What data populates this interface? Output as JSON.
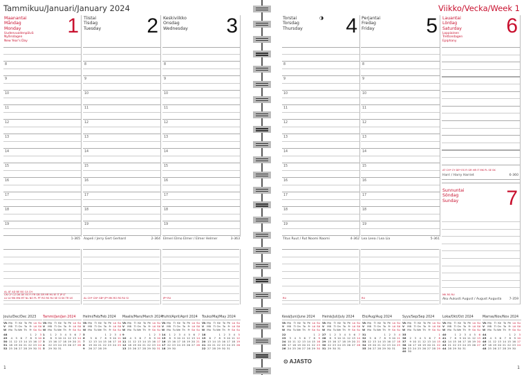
{
  "header": {
    "month_title": "Tammikuu/Januari/January 2024",
    "week_title": "Viikko/Vecka/Week 1"
  },
  "hours": [
    "8",
    "9",
    "10",
    "11",
    "12",
    "13",
    "14",
    "15",
    "16",
    "17",
    "18",
    "19"
  ],
  "days": [
    {
      "fi": "Maanantai",
      "sv": "Måndag",
      "en": "Monday",
      "num": "1",
      "red": true,
      "holiday": [
        "Uudenvuodenpäivä",
        "Nyårsdagen",
        "New Year's Day"
      ],
      "names": "",
      "daycount": "1-365",
      "notes_red": [
        "AL AT AD BE BG CA CH",
        "CN CY CZ DK DE ES FI FR GB GR HR HU IE IT JP LT",
        "LU LV MK MN MT NL NO PL PT RO RS RU SE SI SK TR US"
      ]
    },
    {
      "fi": "Tiistai",
      "sv": "Tisdag",
      "en": "Tuesday",
      "num": "2",
      "red": false,
      "holiday": [],
      "names": "Aapeli / Jerry Gert Gerhard",
      "daycount": "2-364",
      "notes_red": [
        "AL CH* CN* GB* JP* MK RO RS RU SI"
      ]
    },
    {
      "fi": "Keskiviikko",
      "sv": "Onsdag",
      "en": "Wednesday",
      "num": "3",
      "red": false,
      "holiday": [],
      "names": "Elmeri Elmo Elmer / Elmer Helmer",
      "daycount": "3-363",
      "notes_red": [
        "JP* RU"
      ]
    },
    {
      "fi": "Torstai",
      "sv": "Torsdag",
      "en": "Thursday",
      "num": "4",
      "red": false,
      "holiday": [],
      "moon": "last-quarter-moon",
      "names": "Titus Ruut / Rut Noomi Naomi",
      "daycount": "4-362",
      "notes_red": [
        "RU"
      ]
    },
    {
      "fi": "Perjantai",
      "sv": "Fredag",
      "en": "Friday",
      "num": "5",
      "red": false,
      "holiday": [],
      "names": "Lea Leea / Lea Lia",
      "daycount": "5-361",
      "notes_red": [
        "RU"
      ]
    },
    {
      "fi": "Lauantai",
      "sv": "Lördag",
      "en": "Saturday",
      "num": "6",
      "red": true,
      "holiday": [
        "Loppiainen",
        "Trettondagen",
        "Epiphany"
      ],
      "names": "Harri / Harry Harriet",
      "daycount": "6-360",
      "notes_red": [
        "AT CH* CY DE* ES FI GR HR IT MK PL SE SK"
      ]
    },
    {
      "fi": "Sunnuntai",
      "sv": "Söndag",
      "en": "Sunday",
      "num": "7",
      "red": true,
      "holiday": [],
      "names": "Aku Aukusti August / August Augusta",
      "daycount": "7-359",
      "notes_red": [
        "MK RS RU"
      ]
    }
  ],
  "mini_calendar": {
    "headers": [
      [
        "Vk",
        "Ma",
        "Ti",
        "Ke",
        "To",
        "Pe",
        "La",
        "Su"
      ],
      [
        "V",
        "Må",
        "Ti",
        "On",
        "To",
        "Fr",
        "Lö",
        "Sö"
      ],
      [
        "W",
        "Mo",
        "Tu",
        "We",
        "Th",
        "Fr",
        "Sa",
        "Su"
      ]
    ],
    "months": [
      {
        "title": "Joulu/Dec/Dec 2023",
        "first_weekday": 5,
        "days": 31,
        "first_week": 48,
        "current": false
      },
      {
        "title": "Tammi/Jan/Jan 2024",
        "first_weekday": 1,
        "days": 31,
        "first_week": 1,
        "current": true
      },
      {
        "title": "Helmi/Feb/Feb 2024",
        "first_weekday": 4,
        "days": 29,
        "first_week": 5,
        "current": false
      },
      {
        "title": "Maalis/Mars/March 2024",
        "first_weekday": 5,
        "days": 31,
        "first_week": 9,
        "current": false
      },
      {
        "title": "Huhti/April/April 2024",
        "first_weekday": 1,
        "days": 30,
        "first_week": 14,
        "current": false
      },
      {
        "title": "Touko/Maj/May 2024",
        "first_weekday": 3,
        "days": 31,
        "first_week": 18,
        "current": false
      },
      {
        "title": "Kesä/Juni/June 2024",
        "first_weekday": 6,
        "days": 30,
        "first_week": 22,
        "current": false
      },
      {
        "title": "Heinä/Juli/July 2024",
        "first_weekday": 1,
        "days": 31,
        "first_week": 27,
        "current": false
      },
      {
        "title": "Elo/Aug/Aug 2024",
        "first_weekday": 4,
        "days": 31,
        "first_week": 31,
        "current": false
      },
      {
        "title": "Syys/Sep/Sep 2024",
        "first_weekday": 7,
        "days": 30,
        "first_week": 35,
        "current": false
      },
      {
        "title": "Loka/Okt/Oct 2024",
        "first_weekday": 2,
        "days": 31,
        "first_week": 40,
        "current": false
      },
      {
        "title": "Marras/Nov/Nov 2024",
        "first_weekday": 5,
        "days": 30,
        "first_week": 44,
        "current": false
      }
    ]
  },
  "footer": {
    "brand": "AJASTO",
    "page_left": "1",
    "page_right": "1"
  },
  "colors": {
    "accent": "#c8102e",
    "line": "#cccccc"
  }
}
